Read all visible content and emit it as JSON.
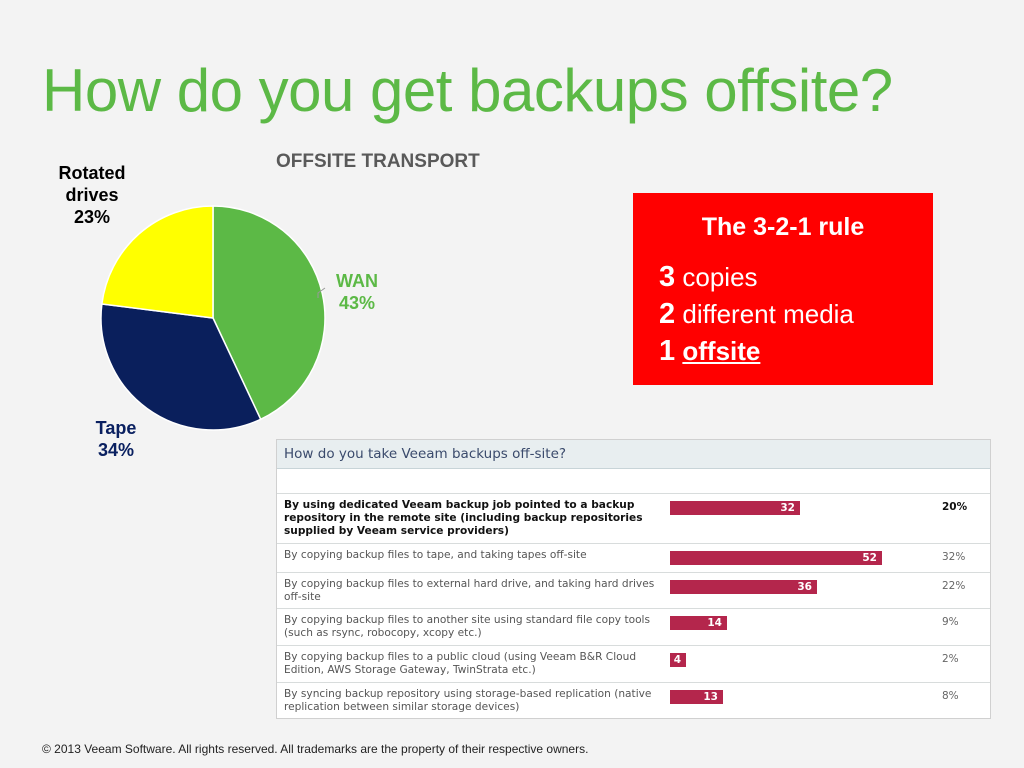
{
  "title": "How do you get backups offsite?",
  "chart_data": [
    {
      "type": "pie",
      "title": "OFFSITE TRANSPORT",
      "slices": [
        {
          "label": "WAN",
          "value": 43,
          "value_label": "43%",
          "color": "#5cb946"
        },
        {
          "label": "Tape",
          "value": 34,
          "value_label": "34%",
          "color": "#0a1f5c"
        },
        {
          "label": "Rotated drives",
          "value": 23,
          "value_label": "23%",
          "color": "#ffff00"
        }
      ]
    },
    {
      "type": "bar",
      "orientation": "horizontal",
      "title": "How do you take Veeam backups off-site?",
      "bar_color": "#b4264c",
      "rows": [
        {
          "label": "By using dedicated Veeam backup job pointed to a backup repository in the remote site (including backup repositories supplied by Veeam service providers)",
          "count": 32,
          "percent": "20%",
          "bold": true
        },
        {
          "label": "By copying backup files to tape, and taking tapes off-site",
          "count": 52,
          "percent": "32%",
          "bold": false
        },
        {
          "label": "By copying backup files to external hard drive, and taking hard drives off-site",
          "count": 36,
          "percent": "22%",
          "bold": false
        },
        {
          "label": "By copying backup files to another site using standard file copy tools (such as rsync, robocopy, xcopy etc.)",
          "count": 14,
          "percent": "9%",
          "bold": false
        },
        {
          "label": "By copying backup files to a public cloud (using Veeam B&R Cloud Edition, AWS Storage Gateway, TwinStrata etc.)",
          "count": 4,
          "percent": "2%",
          "bold": false
        },
        {
          "label": "By syncing backup repository using storage-based replication (native replication between similar storage devices)",
          "count": 13,
          "percent": "8%",
          "bold": false
        }
      ]
    }
  ],
  "rule_box": {
    "title": "The 3-2-1 rule",
    "lines": [
      {
        "num": "3",
        "text": "copies"
      },
      {
        "num": "2",
        "text": "different media"
      },
      {
        "num": "1",
        "text": "offsite"
      }
    ],
    "background": "#ff0000"
  },
  "footer": "© 2013 Veeam Software. All rights reserved. All trademarks are the property of their respective owners."
}
